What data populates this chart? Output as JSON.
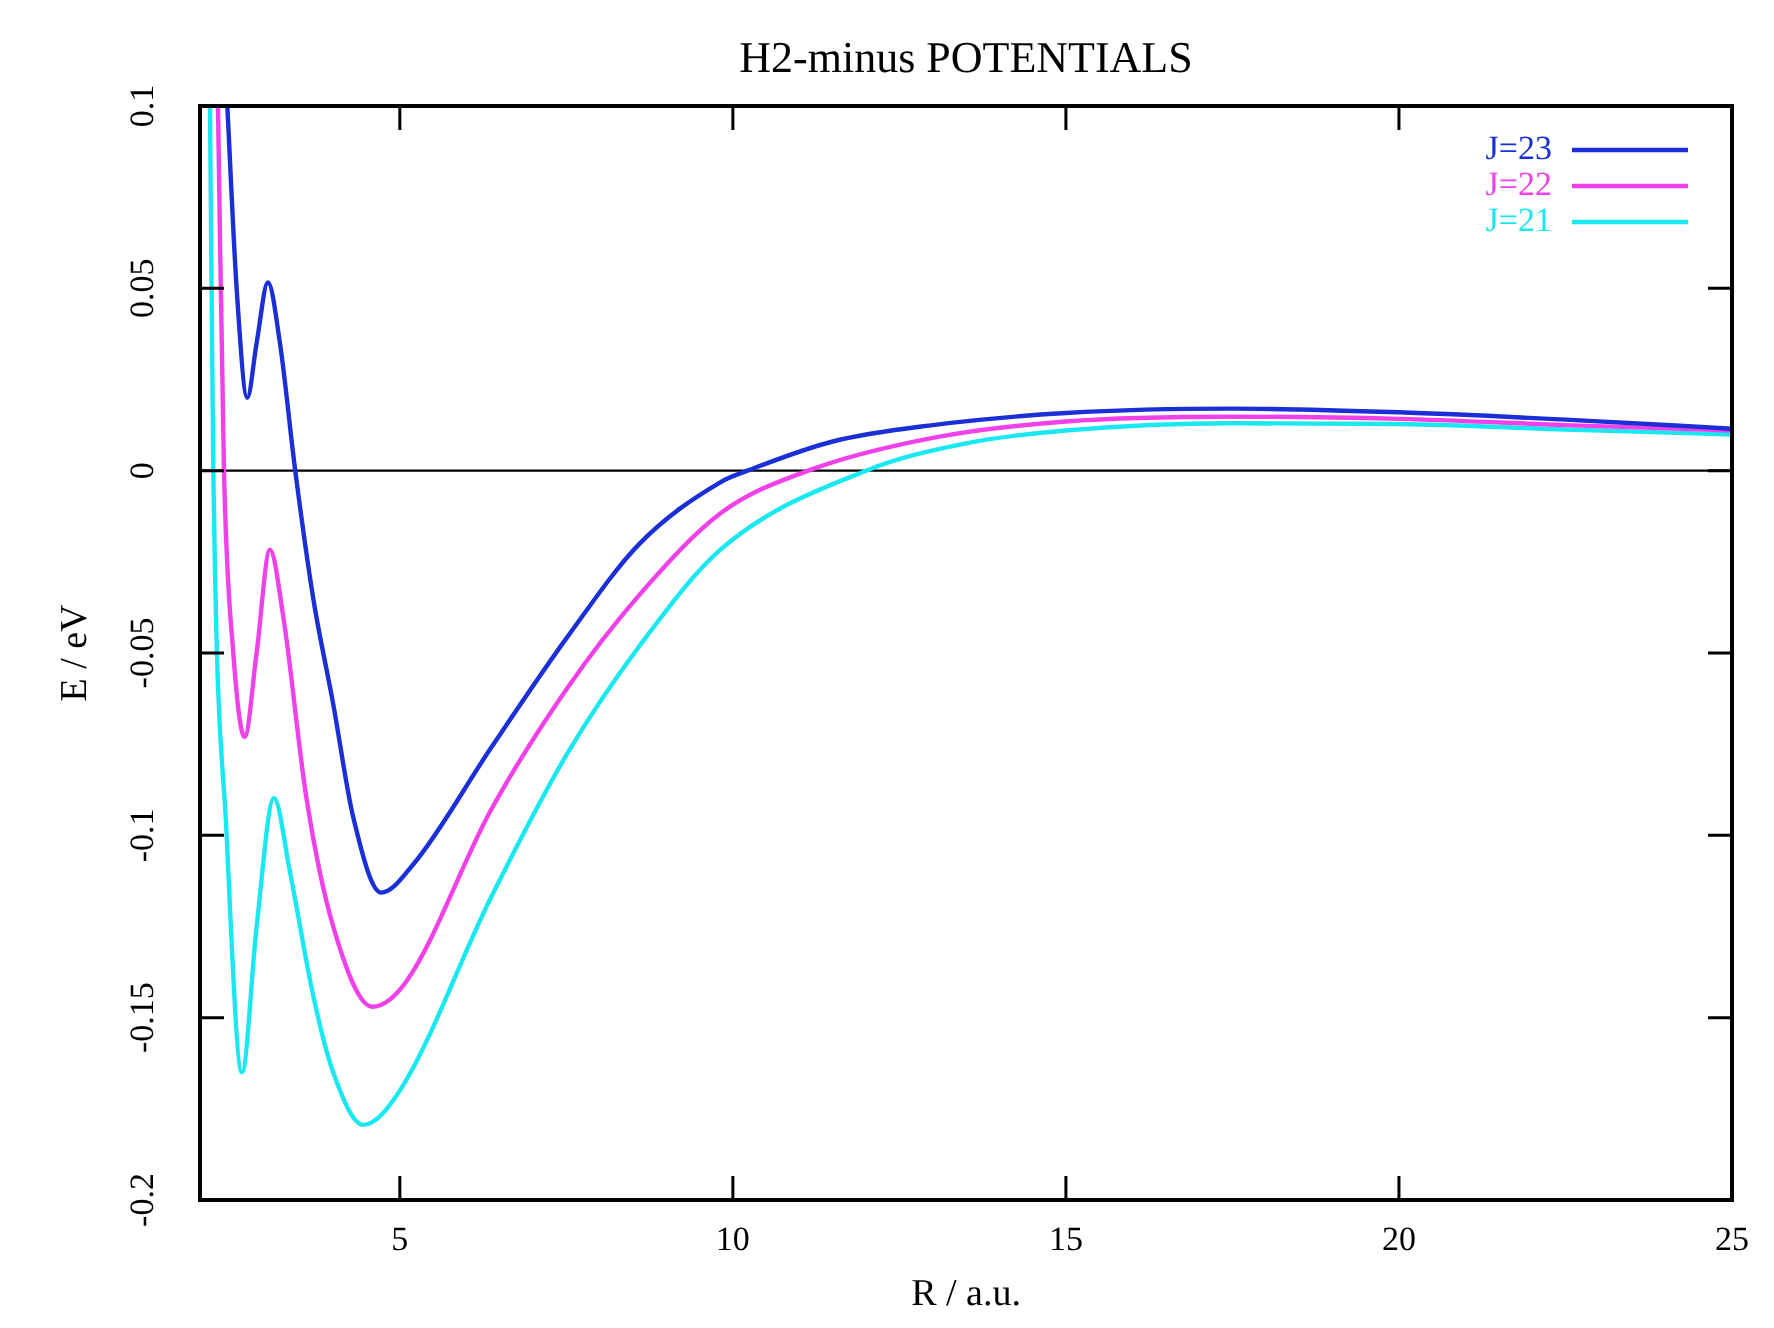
{
  "chart_data": {
    "type": "line",
    "title": "H2-minus POTENTIALS",
    "xlabel": "R / a.u.",
    "ylabel": "E / eV",
    "xlim": [
      2,
      25
    ],
    "xticks": [
      5,
      10,
      15,
      20,
      25
    ],
    "ylim": [
      -0.2,
      0.1
    ],
    "yticks": [
      -0.2,
      -0.15,
      -0.1,
      -0.05,
      0,
      0.05,
      0.1
    ],
    "grid": false,
    "legend": "top right",
    "marker": "none",
    "line_style": "solid",
    "ref_lines": [
      {
        "axis": "y",
        "value": 0,
        "color": "#000000"
      }
    ],
    "series": [
      {
        "name": "J=23",
        "color": "#1a2fd6",
        "x": [
          2.41,
          2.55,
          2.71,
          2.85,
          3.02,
          3.2,
          3.43,
          3.7,
          4.0,
          4.3,
          4.72,
          5.2,
          6.37,
          7.5,
          8.6,
          9.83,
          10.22,
          11.5,
          13,
          15,
          17.5,
          20,
          22.5,
          25
        ],
        "values": [
          0.1,
          0.05,
          0.02,
          0.035,
          0.0516,
          0.035,
          0,
          -0.035,
          -0.064,
          -0.095,
          -0.1157,
          -0.108,
          -0.076,
          -0.046,
          -0.02,
          -0.003,
          0,
          0.008,
          0.0125,
          0.0158,
          0.017,
          0.016,
          0.014,
          0.0115
        ]
      },
      {
        "name": "J=22",
        "color": "#f040e8",
        "x": [
          2.27,
          2.36,
          2.5,
          2.67,
          2.85,
          3.05,
          3.25,
          3.6,
          4.0,
          4.59,
          5.1,
          6.37,
          7.5,
          8.6,
          9.83,
          11.13,
          13,
          15,
          17.5,
          20,
          22.5,
          25
        ],
        "values": [
          0.1,
          0,
          -0.05,
          -0.073,
          -0.05,
          -0.0217,
          -0.04,
          -0.09,
          -0.125,
          -0.147,
          -0.14,
          -0.093,
          -0.06,
          -0.034,
          -0.0115,
          0,
          0.009,
          0.0135,
          0.0148,
          0.0142,
          0.0125,
          0.011
        ]
      },
      {
        "name": "J=21",
        "color": "#19e8f0",
        "x": [
          2.15,
          2.2,
          2.4,
          2.63,
          2.85,
          3.11,
          3.35,
          3.7,
          4.0,
          4.45,
          5.0,
          6.37,
          7.5,
          8.6,
          9.83,
          12.0,
          13.5,
          15,
          17.5,
          20,
          22.5,
          25
        ],
        "values": [
          0.1,
          0,
          -0.1,
          -0.165,
          -0.125,
          -0.0898,
          -0.11,
          -0.144,
          -0.165,
          -0.1794,
          -0.17,
          -0.117,
          -0.078,
          -0.048,
          -0.0214,
          0,
          0.0075,
          0.011,
          0.013,
          0.0128,
          0.0113,
          0.0099
        ]
      }
    ]
  }
}
